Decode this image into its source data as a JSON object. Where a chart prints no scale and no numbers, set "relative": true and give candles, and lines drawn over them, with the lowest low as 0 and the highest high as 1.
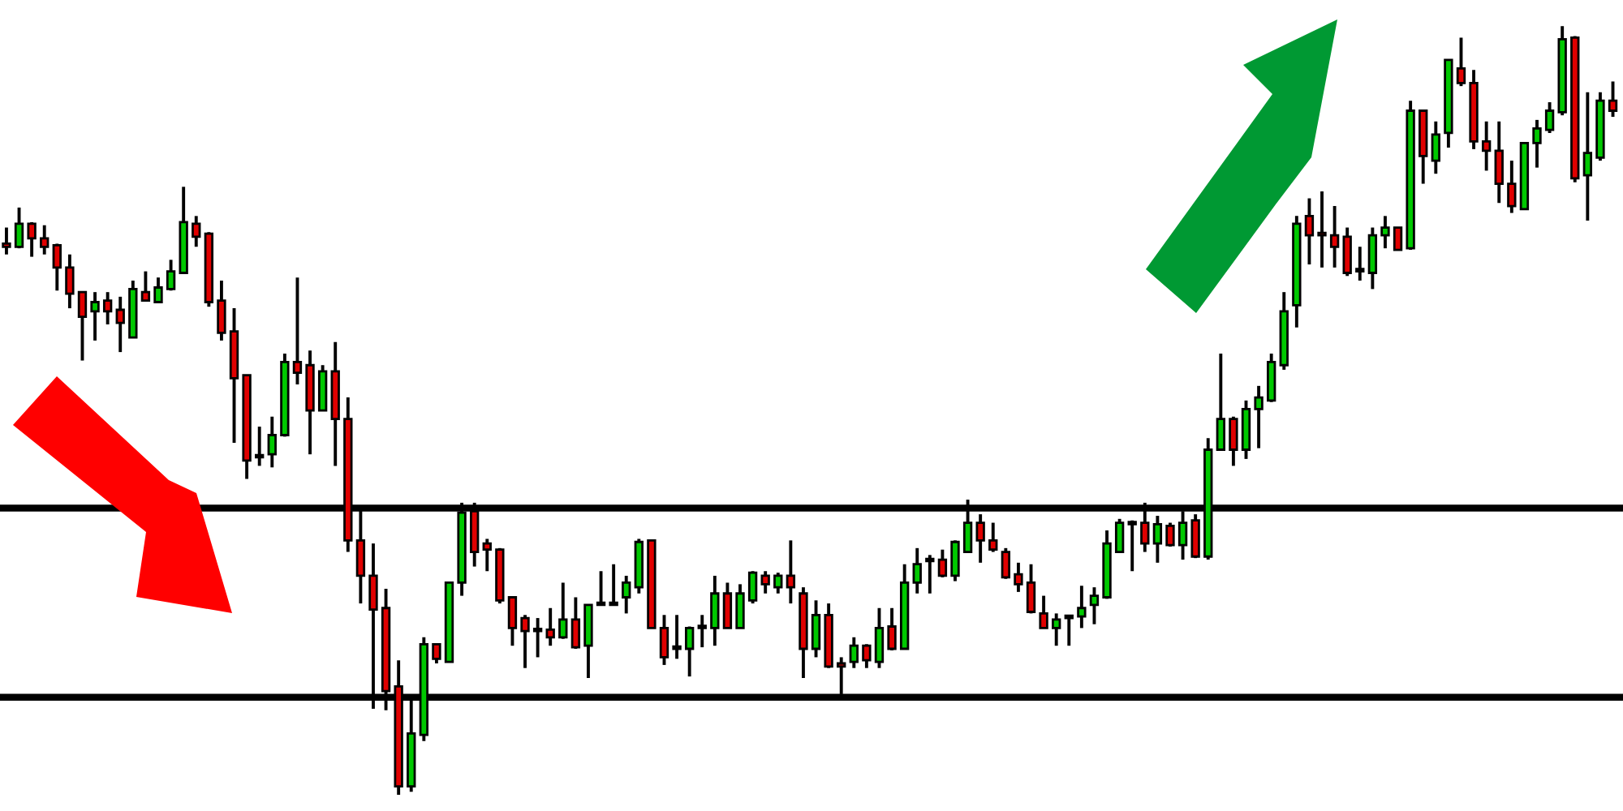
{
  "chart_data": {
    "type": "candlestick",
    "relative": true,
    "grid": false,
    "legend": false,
    "colors": [
      "#e00000",
      "#00c800",
      "#e00000",
      "#e00000",
      "#e00000",
      "#e00000",
      "#e00000",
      "#00c800",
      "#e00000",
      "#e00000",
      "#00c800",
      "#e00000",
      "#00c800",
      "#00c800",
      "#00c800",
      "#e00000",
      "#e00000",
      "#e00000",
      "#e00000",
      "#e00000",
      "#e00000",
      "#00c800",
      "#00c800",
      "#e00000",
      "#e00000",
      "#00c800",
      "#e00000",
      "#e00000",
      "#e00000",
      "#e00000",
      "#e00000",
      "#e00000",
      "#00c800",
      "#00c800",
      "#e00000",
      "#00c800",
      "#00c800",
      "#e00000",
      "#e00000",
      "#e00000",
      "#e00000",
      "#e00000",
      "#e00000",
      "#e00000",
      "#00c800",
      "#e00000",
      "#00c800",
      "#00c800",
      "#00c800",
      "#00c800",
      "#00c800",
      "#e00000",
      "#e00000",
      "#e00000",
      "#00c800",
      "#e00000",
      "#00c800",
      "#e00000",
      "#00c800",
      "#00c800",
      "#e00000",
      "#00c800",
      "#e00000",
      "#e00000",
      "#00c800",
      "#e00000",
      "#e00000",
      "#00c800",
      "#e00000",
      "#00c800",
      "#e00000",
      "#00c800",
      "#00c800",
      "#e00000",
      "#e00000",
      "#00c800",
      "#00c800",
      "#e00000",
      "#e00000",
      "#e00000",
      "#e00000",
      "#e00000",
      "#e00000",
      "#00c800",
      "#00c800",
      "#00c800",
      "#00c800",
      "#00c800",
      "#00c800",
      "#00c800",
      "#e00000",
      "#00c800",
      "#e00000",
      "#00c800",
      "#e00000",
      "#00c800",
      "#00c800",
      "#e00000",
      "#00c800",
      "#00c800",
      "#00c800",
      "#00c800",
      "#00c800",
      "#e00000",
      "#e00000",
      "#e00000",
      "#e00000",
      "#e00000",
      "#00c800",
      "#00c800",
      "#e00000",
      "#00c800",
      "#e00000",
      "#00c800",
      "#00c800",
      "#e00000",
      "#e00000",
      "#e00000",
      "#e00000",
      "#e00000",
      "#00c800",
      "#00c800",
      "#00c800",
      "#00c800",
      "#e00000",
      "#00c800",
      "#00c800",
      "#e00000"
    ],
    "categories": [
      null,
      null,
      null,
      null,
      null,
      null,
      null,
      null,
      null,
      null,
      null,
      null,
      null,
      null,
      null,
      null,
      null,
      null,
      null,
      null,
      null,
      null,
      null,
      null,
      null,
      null,
      null,
      null,
      null,
      null,
      null,
      null,
      null,
      null,
      null,
      null,
      null,
      null,
      null,
      null,
      null,
      null,
      null,
      null,
      null,
      null,
      null,
      null,
      null,
      null,
      null,
      null,
      null,
      null,
      null,
      null,
      null,
      null,
      null,
      null,
      null,
      null,
      null,
      null,
      null,
      null,
      null,
      null,
      null,
      null,
      null,
      null,
      null,
      null,
      null,
      null,
      null,
      null,
      null,
      null,
      null,
      null,
      null,
      null,
      null,
      null,
      null,
      null,
      null,
      null,
      null,
      null,
      null,
      null,
      null,
      null,
      null,
      null,
      null,
      null,
      null,
      null,
      null,
      null,
      null,
      null,
      null,
      null,
      null,
      null,
      null,
      null,
      null,
      null,
      null,
      null,
      null,
      null,
      null,
      null,
      null,
      null,
      null,
      null,
      null,
      null,
      null,
      null
    ],
    "ohlc": [
      [
        0.717,
        0.738,
        0.703,
        0.713
      ],
      [
        0.713,
        0.764,
        0.711,
        0.743
      ],
      [
        0.743,
        0.745,
        0.7,
        0.724
      ],
      [
        0.724,
        0.741,
        0.703,
        0.713
      ],
      [
        0.715,
        0.717,
        0.656,
        0.686
      ],
      [
        0.686,
        0.703,
        0.633,
        0.652
      ],
      [
        0.654,
        0.654,
        0.565,
        0.622
      ],
      [
        0.629,
        0.654,
        0.591,
        0.641
      ],
      [
        0.643,
        0.654,
        0.612,
        0.629
      ],
      [
        0.631,
        0.648,
        0.576,
        0.614
      ],
      [
        0.595,
        0.669,
        0.595,
        0.658
      ],
      [
        0.654,
        0.681,
        0.643,
        0.643
      ],
      [
        0.641,
        0.673,
        0.641,
        0.66
      ],
      [
        0.658,
        0.696,
        0.656,
        0.681
      ],
      [
        0.679,
        0.791,
        0.679,
        0.745
      ],
      [
        0.743,
        0.753,
        0.713,
        0.726
      ],
      [
        0.73,
        0.732,
        0.635,
        0.641
      ],
      [
        0.643,
        0.669,
        0.591,
        0.601
      ],
      [
        0.603,
        0.633,
        0.458,
        0.542
      ],
      [
        0.546,
        0.546,
        0.411,
        0.435
      ],
      [
        0.441,
        0.479,
        0.428,
        0.439
      ],
      [
        0.443,
        0.492,
        0.426,
        0.468
      ],
      [
        0.468,
        0.574,
        0.466,
        0.563
      ],
      [
        0.563,
        0.673,
        0.534,
        0.549
      ],
      [
        0.559,
        0.578,
        0.443,
        0.5
      ],
      [
        0.5,
        0.559,
        0.5,
        0.551
      ],
      [
        0.551,
        0.589,
        0.428,
        0.489
      ],
      [
        0.489,
        0.517,
        0.316,
        0.331
      ],
      [
        0.331,
        0.373,
        0.249,
        0.285
      ],
      [
        0.285,
        0.327,
        0.112,
        0.241
      ],
      [
        0.243,
        0.268,
        0.11,
        0.135
      ],
      [
        0.141,
        0.175,
        0.0,
        0.011
      ],
      [
        0.011,
        0.127,
        0.004,
        0.08
      ],
      [
        0.078,
        0.205,
        0.07,
        0.196
      ],
      [
        0.196,
        0.196,
        0.171,
        0.177
      ],
      [
        0.173,
        0.276,
        0.173,
        0.276
      ],
      [
        0.276,
        0.38,
        0.259,
        0.367
      ],
      [
        0.369,
        0.38,
        0.297,
        0.316
      ],
      [
        0.327,
        0.333,
        0.291,
        0.319
      ],
      [
        0.319,
        0.321,
        0.249,
        0.253
      ],
      [
        0.257,
        0.257,
        0.194,
        0.217
      ],
      [
        0.23,
        0.234,
        0.165,
        0.213
      ],
      [
        0.215,
        0.23,
        0.179,
        0.213
      ],
      [
        0.215,
        0.243,
        0.194,
        0.205
      ],
      [
        0.205,
        0.276,
        0.203,
        0.228
      ],
      [
        0.228,
        0.257,
        0.19,
        0.192
      ],
      [
        0.194,
        0.247,
        0.152,
        0.247
      ],
      [
        0.247,
        0.291,
        0.247,
        0.249
      ],
      [
        0.247,
        0.3,
        0.247,
        0.249
      ],
      [
        0.257,
        0.285,
        0.236,
        0.276
      ],
      [
        0.27,
        0.333,
        0.262,
        0.329
      ],
      [
        0.331,
        0.331,
        0.217,
        0.217
      ],
      [
        0.217,
        0.234,
        0.169,
        0.179
      ],
      [
        0.192,
        0.234,
        0.177,
        0.19
      ],
      [
        0.19,
        0.219,
        0.154,
        0.217
      ],
      [
        0.219,
        0.234,
        0.192,
        0.217
      ],
      [
        0.217,
        0.285,
        0.194,
        0.262
      ],
      [
        0.262,
        0.276,
        0.217,
        0.217
      ],
      [
        0.217,
        0.274,
        0.217,
        0.262
      ],
      [
        0.253,
        0.291,
        0.249,
        0.289
      ],
      [
        0.285,
        0.291,
        0.262,
        0.274
      ],
      [
        0.27,
        0.289,
        0.262,
        0.285
      ],
      [
        0.285,
        0.331,
        0.249,
        0.27
      ],
      [
        0.262,
        0.27,
        0.152,
        0.19
      ],
      [
        0.19,
        0.253,
        0.179,
        0.234
      ],
      [
        0.234,
        0.249,
        0.165,
        0.167
      ],
      [
        0.171,
        0.179,
        0.131,
        0.167
      ],
      [
        0.173,
        0.205,
        0.165,
        0.194
      ],
      [
        0.194,
        0.196,
        0.165,
        0.175
      ],
      [
        0.173,
        0.243,
        0.165,
        0.217
      ],
      [
        0.219,
        0.243,
        0.188,
        0.19
      ],
      [
        0.19,
        0.3,
        0.19,
        0.276
      ],
      [
        0.276,
        0.321,
        0.262,
        0.3
      ],
      [
        0.306,
        0.312,
        0.262,
        0.304
      ],
      [
        0.306,
        0.319,
        0.283,
        0.285
      ],
      [
        0.285,
        0.331,
        0.278,
        0.329
      ],
      [
        0.316,
        0.384,
        0.316,
        0.354
      ],
      [
        0.354,
        0.365,
        0.302,
        0.331
      ],
      [
        0.331,
        0.354,
        0.316,
        0.319
      ],
      [
        0.316,
        0.321,
        0.281,
        0.283
      ],
      [
        0.287,
        0.302,
        0.264,
        0.274
      ],
      [
        0.276,
        0.3,
        0.236,
        0.238
      ],
      [
        0.236,
        0.259,
        0.217,
        0.217
      ],
      [
        0.217,
        0.236,
        0.194,
        0.228
      ],
      [
        0.23,
        0.234,
        0.194,
        0.232
      ],
      [
        0.232,
        0.272,
        0.217,
        0.243
      ],
      [
        0.247,
        0.27,
        0.222,
        0.259
      ],
      [
        0.257,
        0.344,
        0.255,
        0.327
      ],
      [
        0.316,
        0.359,
        0.316,
        0.354
      ],
      [
        0.352,
        0.357,
        0.291,
        0.354
      ],
      [
        0.354,
        0.38,
        0.316,
        0.327
      ],
      [
        0.327,
        0.363,
        0.302,
        0.352
      ],
      [
        0.35,
        0.354,
        0.323,
        0.325
      ],
      [
        0.325,
        0.369,
        0.306,
        0.354
      ],
      [
        0.357,
        0.365,
        0.308,
        0.31
      ],
      [
        0.31,
        0.464,
        0.306,
        0.449
      ],
      [
        0.449,
        0.574,
        0.449,
        0.489
      ],
      [
        0.489,
        0.492,
        0.428,
        0.449
      ],
      [
        0.449,
        0.513,
        0.437,
        0.502
      ],
      [
        0.502,
        0.532,
        0.451,
        0.517
      ],
      [
        0.513,
        0.574,
        0.511,
        0.563
      ],
      [
        0.559,
        0.654,
        0.553,
        0.629
      ],
      [
        0.637,
        0.753,
        0.608,
        0.743
      ],
      [
        0.753,
        0.776,
        0.69,
        0.728
      ],
      [
        0.73,
        0.785,
        0.686,
        0.728
      ],
      [
        0.728,
        0.766,
        0.686,
        0.713
      ],
      [
        0.726,
        0.738,
        0.675,
        0.679
      ],
      [
        0.684,
        0.713,
        0.669,
        0.681
      ],
      [
        0.679,
        0.738,
        0.658,
        0.728
      ],
      [
        0.728,
        0.753,
        0.711,
        0.738
      ],
      [
        0.738,
        0.738,
        0.709,
        0.709
      ],
      [
        0.711,
        0.903,
        0.709,
        0.89
      ],
      [
        0.89,
        0.89,
        0.795,
        0.831
      ],
      [
        0.825,
        0.876,
        0.808,
        0.859
      ],
      [
        0.861,
        0.956,
        0.842,
        0.956
      ],
      [
        0.945,
        0.985,
        0.922,
        0.926
      ],
      [
        0.926,
        0.943,
        0.84,
        0.85
      ],
      [
        0.85,
        0.876,
        0.812,
        0.838
      ],
      [
        0.838,
        0.876,
        0.77,
        0.795
      ],
      [
        0.795,
        0.825,
        0.757,
        0.766
      ],
      [
        0.762,
        0.848,
        0.762,
        0.848
      ],
      [
        0.848,
        0.878,
        0.816,
        0.867
      ],
      [
        0.865,
        0.901,
        0.861,
        0.89
      ],
      [
        0.888,
        1.0,
        0.884,
        0.983
      ],
      [
        0.985,
        0.987,
        0.797,
        0.802
      ],
      [
        0.806,
        0.914,
        0.747,
        0.835
      ],
      [
        0.829,
        0.914,
        0.825,
        0.903
      ],
      [
        0.903,
        0.928,
        0.882,
        0.89
      ]
    ],
    "ref_lines": [
      {
        "axis": "y",
        "value": 0.373,
        "color": "#000000"
      },
      {
        "axis": "y",
        "value": 0.127,
        "color": "#000000"
      }
    ]
  }
}
